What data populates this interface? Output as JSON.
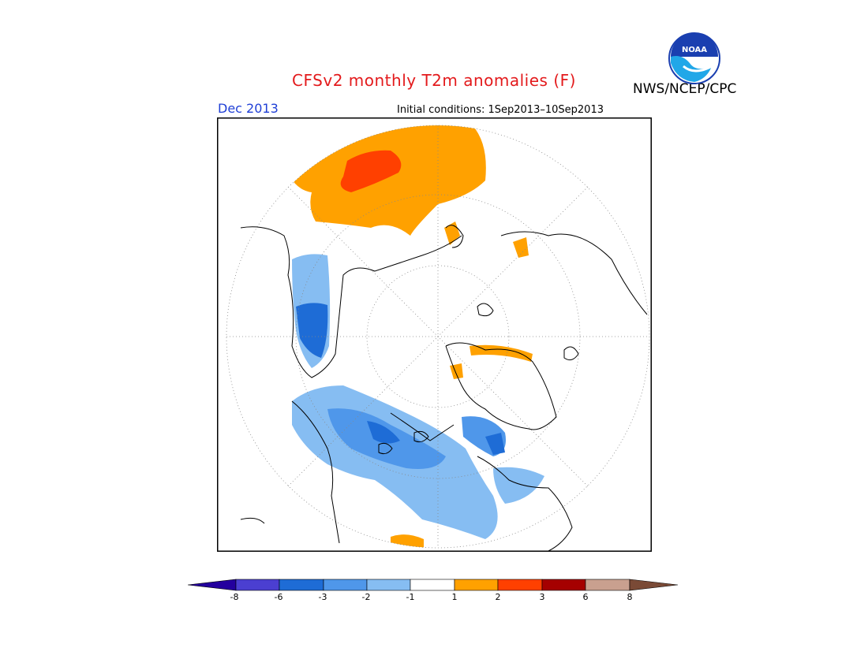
{
  "header": {
    "title": "CFSv2 monthly T2m anomalies (F)",
    "month": "Dec 2013",
    "initial_conditions": "Initial conditions: 1Sep2013–10Sep2013",
    "org": "NWS/NCEP/CPC",
    "logo_text": "NOAA"
  },
  "legend": {
    "ticks": [
      "-8",
      "-6",
      "-3",
      "-2",
      "-1",
      "1",
      "2",
      "3",
      "6",
      "8"
    ],
    "colors": [
      "#24009e",
      "#4b3fd1",
      "#1e6cd6",
      "#4f97ea",
      "#86bdf2",
      "#ffffff",
      "#ffa100",
      "#ff4000",
      "#a50000",
      "#c9a08f",
      "#7a4a36"
    ]
  },
  "map": {
    "projection": "north polar stereographic",
    "colors": {
      "warm1": "#ffa100",
      "warm2": "#ff4000",
      "warm3": "#a50000",
      "cool1": "#86bdf2",
      "cool2": "#4f97ea",
      "cool3": "#1e6cd6"
    }
  }
}
